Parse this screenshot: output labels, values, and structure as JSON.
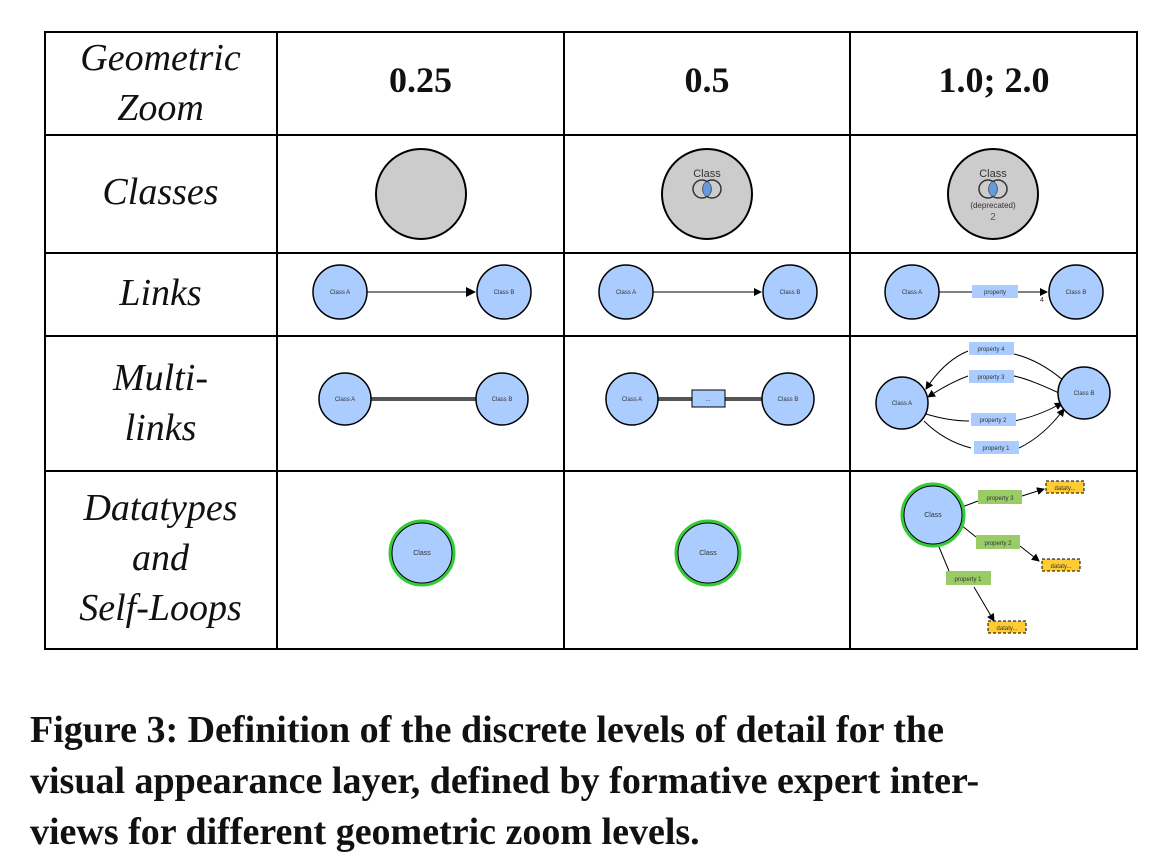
{
  "table": {
    "header": {
      "corner_line1": "Geometric",
      "corner_line2": "Zoom",
      "col1": "0.25",
      "col2": "0.5",
      "col3": "1.0; 2.0"
    },
    "rows": {
      "classes": "Classes",
      "links": "Links",
      "multilinks_line1": "Multi-",
      "multilinks_line2": "links",
      "datatypes_line1": "Datatypes",
      "datatypes_line2": "and",
      "datatypes_line3": "Self-Loops"
    }
  },
  "graphics": {
    "class_label": "Class",
    "deprecated_label": "(deprecated)",
    "instance_count": "2",
    "class_a": "Class A",
    "class_b": "Class B",
    "property": "property",
    "property_count": "4",
    "multi_placeholder": "...",
    "property_1": "property 1",
    "property_2": "property 2",
    "property_3": "property 3",
    "property_4": "property 4",
    "datatype": "dataty..."
  },
  "caption": {
    "line1": "Figure 3: Definition of the discrete levels of detail for the",
    "line2": "visual appearance layer, defined by formative expert inter-",
    "line3": "views for different geometric zoom levels."
  },
  "colors": {
    "class_fill": "#aaccff",
    "deprecated_fill": "#cccccc",
    "property_fill": "#aaccff",
    "datatype_property_fill": "#99cc66",
    "datatype_fill": "#ffcc33",
    "datatype_class_border": "#33cc33"
  }
}
